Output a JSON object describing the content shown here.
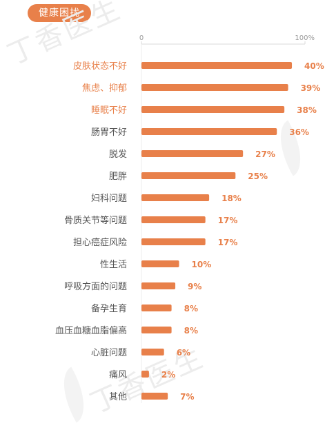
{
  "header": {
    "badge_label": "健康困扰",
    "badge_color": "#e8804a"
  },
  "watermark": {
    "text": "丁香医生"
  },
  "chart_data": {
    "type": "bar",
    "orientation": "horizontal",
    "bar_color": "#e8804a",
    "highlight_label_color": "#e8804a",
    "default_label_color": "#555555",
    "axis_ticks": [
      "0",
      "100%"
    ],
    "xlim": [
      0,
      100
    ],
    "categories": [
      "皮肤状态不好",
      "焦虑、抑郁",
      "睡眠不好",
      "肠胃不好",
      "脱发",
      "肥胖",
      "妇科问题",
      "骨质关节等问题",
      "担心癌症风险",
      "性生活",
      "呼吸方面的问题",
      "备孕生育",
      "血压血糖血脂偏高",
      "心脏问题",
      "痛风",
      "其他"
    ],
    "highlighted": [
      true,
      true,
      true,
      false,
      false,
      false,
      false,
      false,
      false,
      false,
      false,
      false,
      false,
      false,
      false,
      false
    ],
    "values": [
      40,
      39,
      38,
      36,
      27,
      25,
      18,
      17,
      17,
      10,
      9,
      8,
      8,
      6,
      2,
      7
    ],
    "value_labels": [
      "40%",
      "39%",
      "38%",
      "36%",
      "27%",
      "25%",
      "18%",
      "17%",
      "17%",
      "10%",
      "9%",
      "8%",
      "8%",
      "6%",
      "2%",
      "7%"
    ]
  }
}
